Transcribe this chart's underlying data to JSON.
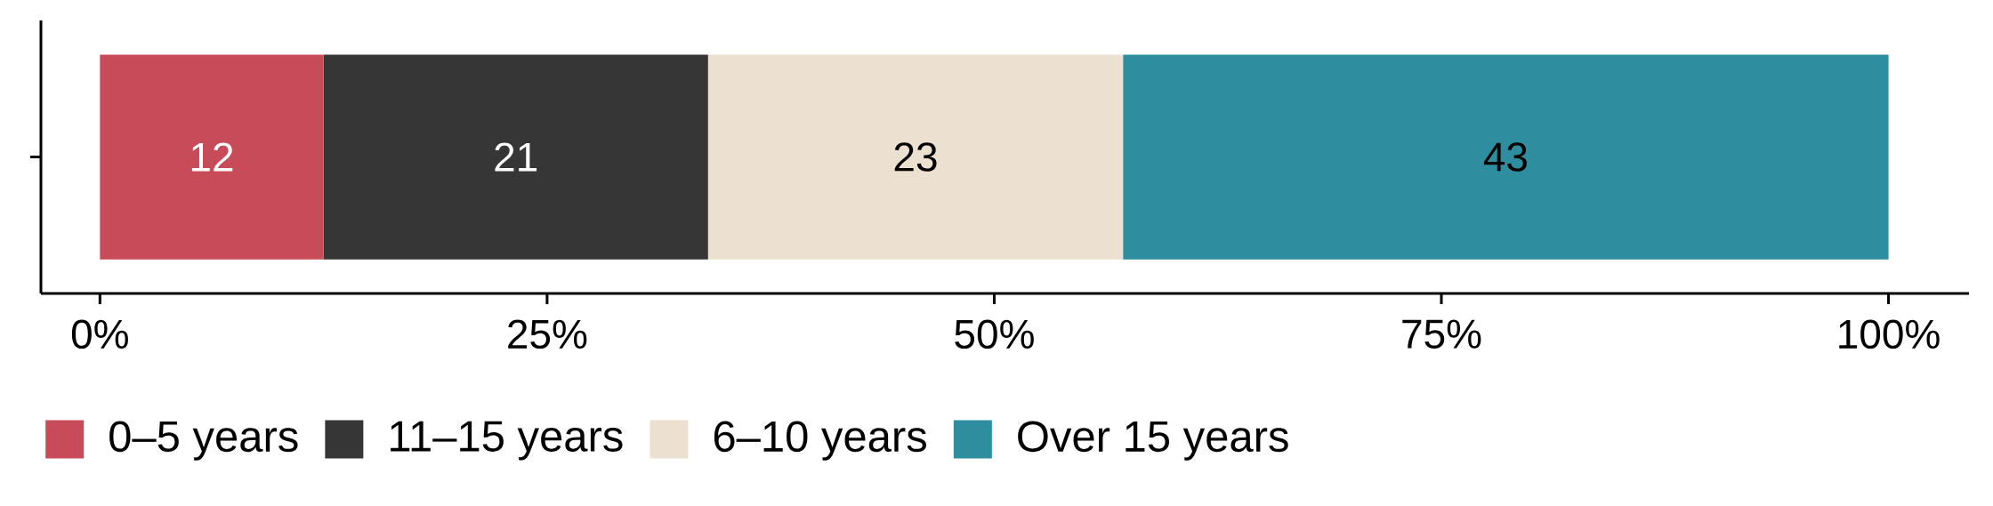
{
  "chart_data": {
    "type": "bar",
    "orientation": "horizontal",
    "stacked": true,
    "categories": [
      null
    ],
    "series": [
      {
        "name": "0–5 years",
        "color": "#c84b5a",
        "values": [
          12.5
        ],
        "value_labels": [
          "12"
        ]
      },
      {
        "name": "11–15 years",
        "color": "#363636",
        "values": [
          21.5
        ],
        "value_labels": [
          "21"
        ]
      },
      {
        "name": "6–10 years",
        "color": "#ece0d1",
        "values": [
          23.2
        ],
        "value_labels": [
          "23"
        ]
      },
      {
        "name": "Over 15 years",
        "color": "#2e8d9f",
        "values": [
          42.8
        ],
        "value_labels": [
          "43"
        ]
      }
    ],
    "xlim": [
      -3.3,
      104.5
    ],
    "xticks": [
      {
        "value": 0,
        "label": "0%"
      },
      {
        "value": 25,
        "label": "25%"
      },
      {
        "value": 50,
        "label": "50%"
      },
      {
        "value": 75,
        "label": "75%"
      },
      {
        "value": 100,
        "label": "100%"
      }
    ],
    "legend": "bottom"
  }
}
